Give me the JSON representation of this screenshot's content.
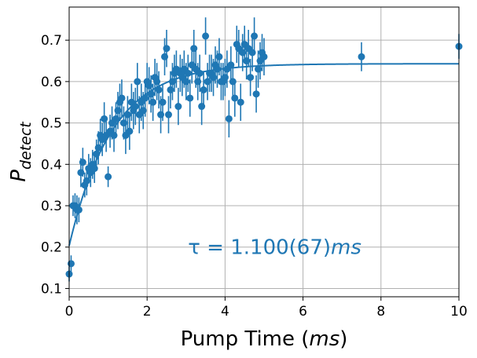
{
  "chart_data": {
    "type": "scatter",
    "xlabel": {
      "main": "Pump Time (",
      "italic": "ms",
      "end": ")"
    },
    "ylabel": {
      "main": "P",
      "sub": "detect"
    },
    "annotation": {
      "prefix": "τ = 1.100(67)",
      "italic": "ms"
    },
    "xlim": [
      0,
      10
    ],
    "ylim": [
      0.08,
      0.78
    ],
    "xticks": [
      "0",
      "2",
      "4",
      "6",
      "8",
      "10"
    ],
    "yticks": [
      "0.1",
      "0.2",
      "0.3",
      "0.4",
      "0.5",
      "0.6",
      "0.7"
    ],
    "grid": true,
    "color": "#1f77b4",
    "series": [
      {
        "type": "scatter_errorbar",
        "x": [
          0.0,
          0.05,
          0.1,
          0.15,
          0.2,
          0.25,
          0.3,
          0.35,
          0.4,
          0.45,
          0.5,
          0.55,
          0.6,
          0.65,
          0.7,
          0.75,
          0.8,
          0.85,
          0.9,
          0.95,
          1.0,
          1.05,
          1.1,
          1.15,
          1.2,
          1.25,
          1.3,
          1.35,
          1.4,
          1.45,
          1.5,
          1.55,
          1.6,
          1.65,
          1.7,
          1.75,
          1.8,
          1.85,
          1.9,
          1.95,
          2.0,
          2.05,
          2.1,
          2.15,
          2.2,
          2.25,
          2.3,
          2.35,
          2.4,
          2.45,
          2.5,
          2.55,
          2.6,
          2.65,
          2.7,
          2.75,
          2.8,
          2.85,
          2.9,
          2.95,
          3.0,
          3.05,
          3.1,
          3.15,
          3.2,
          3.25,
          3.3,
          3.35,
          3.4,
          3.45,
          3.5,
          3.55,
          3.6,
          3.65,
          3.7,
          3.75,
          3.8,
          3.85,
          3.9,
          3.95,
          4.0,
          4.05,
          4.1,
          4.15,
          4.2,
          4.25,
          4.3,
          4.35,
          4.4,
          4.45,
          4.5,
          4.55,
          4.6,
          4.65,
          4.7,
          4.75,
          4.8,
          4.85,
          4.9,
          4.95,
          5.0,
          7.5,
          10.0
        ],
        "y": [
          0.135,
          0.16,
          0.3,
          0.3,
          0.29,
          0.29,
          0.38,
          0.405,
          0.35,
          0.36,
          0.39,
          0.38,
          0.4,
          0.39,
          0.425,
          0.44,
          0.47,
          0.46,
          0.51,
          0.47,
          0.37,
          0.48,
          0.5,
          0.47,
          0.51,
          0.53,
          0.55,
          0.56,
          0.5,
          0.47,
          0.52,
          0.48,
          0.55,
          0.53,
          0.54,
          0.6,
          0.52,
          0.55,
          0.53,
          0.56,
          0.6,
          0.59,
          0.57,
          0.55,
          0.61,
          0.6,
          0.58,
          0.52,
          0.55,
          0.66,
          0.68,
          0.52,
          0.58,
          0.6,
          0.62,
          0.63,
          0.54,
          0.62,
          0.61,
          0.63,
          0.6,
          0.62,
          0.56,
          0.64,
          0.68,
          0.63,
          0.6,
          0.62,
          0.54,
          0.58,
          0.71,
          0.6,
          0.62,
          0.62,
          0.61,
          0.64,
          0.63,
          0.66,
          0.6,
          0.6,
          0.61,
          0.63,
          0.51,
          0.64,
          0.6,
          0.56,
          0.69,
          0.68,
          0.55,
          0.67,
          0.69,
          0.65,
          0.68,
          0.61,
          0.67,
          0.71,
          0.57,
          0.63,
          0.65,
          0.67,
          0.66,
          0.66,
          0.685
        ],
        "yerr": [
          0.018,
          0.02,
          0.025,
          0.03,
          0.035,
          0.03,
          0.035,
          0.035,
          0.03,
          0.035,
          0.035,
          0.035,
          0.035,
          0.035,
          0.035,
          0.04,
          0.04,
          0.04,
          0.04,
          0.04,
          0.025,
          0.04,
          0.04,
          0.04,
          0.04,
          0.045,
          0.045,
          0.045,
          0.04,
          0.045,
          0.045,
          0.045,
          0.045,
          0.045,
          0.045,
          0.045,
          0.045,
          0.045,
          0.045,
          0.045,
          0.045,
          0.045,
          0.045,
          0.045,
          0.045,
          0.045,
          0.045,
          0.045,
          0.045,
          0.045,
          0.045,
          0.045,
          0.045,
          0.045,
          0.045,
          0.045,
          0.045,
          0.045,
          0.045,
          0.045,
          0.045,
          0.045,
          0.045,
          0.045,
          0.045,
          0.045,
          0.045,
          0.045,
          0.045,
          0.045,
          0.045,
          0.045,
          0.045,
          0.045,
          0.045,
          0.045,
          0.045,
          0.045,
          0.045,
          0.045,
          0.045,
          0.045,
          0.045,
          0.045,
          0.045,
          0.045,
          0.045,
          0.045,
          0.045,
          0.045,
          0.045,
          0.045,
          0.045,
          0.045,
          0.045,
          0.045,
          0.045,
          0.045,
          0.045,
          0.045,
          0.045,
          0.035,
          0.03
        ]
      },
      {
        "type": "fit_line",
        "model": "a - b*exp(-x/tau)",
        "params": {
          "a": 0.643,
          "b": 0.44,
          "tau": 1.1
        }
      }
    ]
  }
}
